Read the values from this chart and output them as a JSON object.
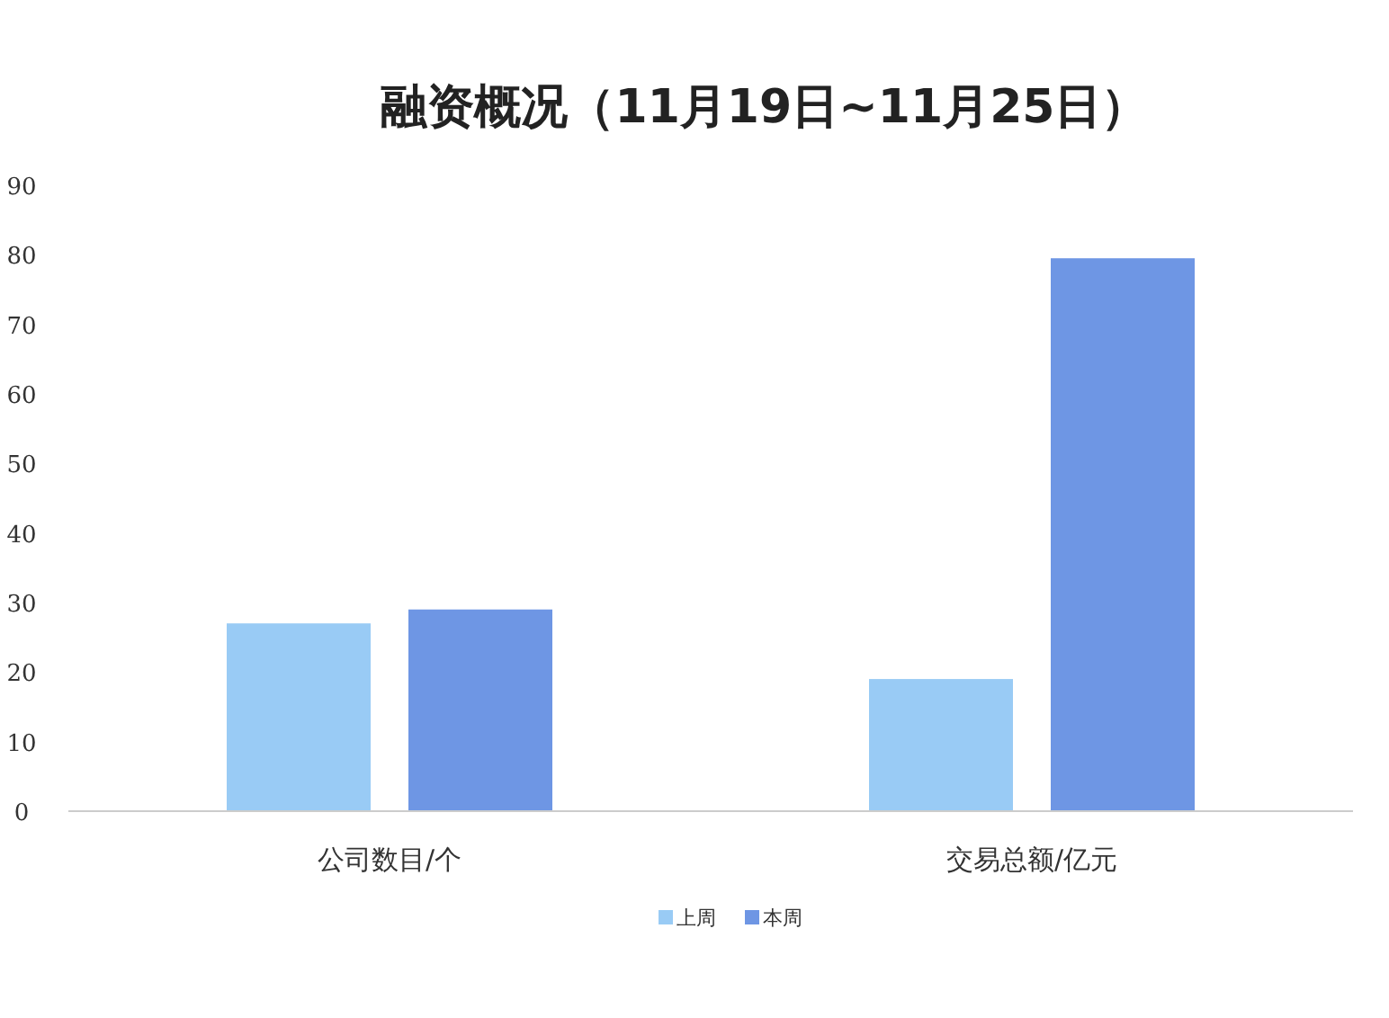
{
  "chart_data": {
    "type": "bar",
    "title": "融资概况（11月19日~11月25日）",
    "categories": [
      "公司数目/个",
      "交易总额/亿元"
    ],
    "series": [
      {
        "name": "上周",
        "color": "#99cbf5",
        "values": [
          27,
          19
        ]
      },
      {
        "name": "本周",
        "color": "#6e96e4",
        "values": [
          29,
          79.5
        ]
      }
    ],
    "ylim": [
      0,
      90
    ],
    "yticks": [
      0,
      10,
      20,
      30,
      40,
      50,
      60,
      70,
      80,
      90
    ],
    "grid": false,
    "legend": "bottom"
  }
}
